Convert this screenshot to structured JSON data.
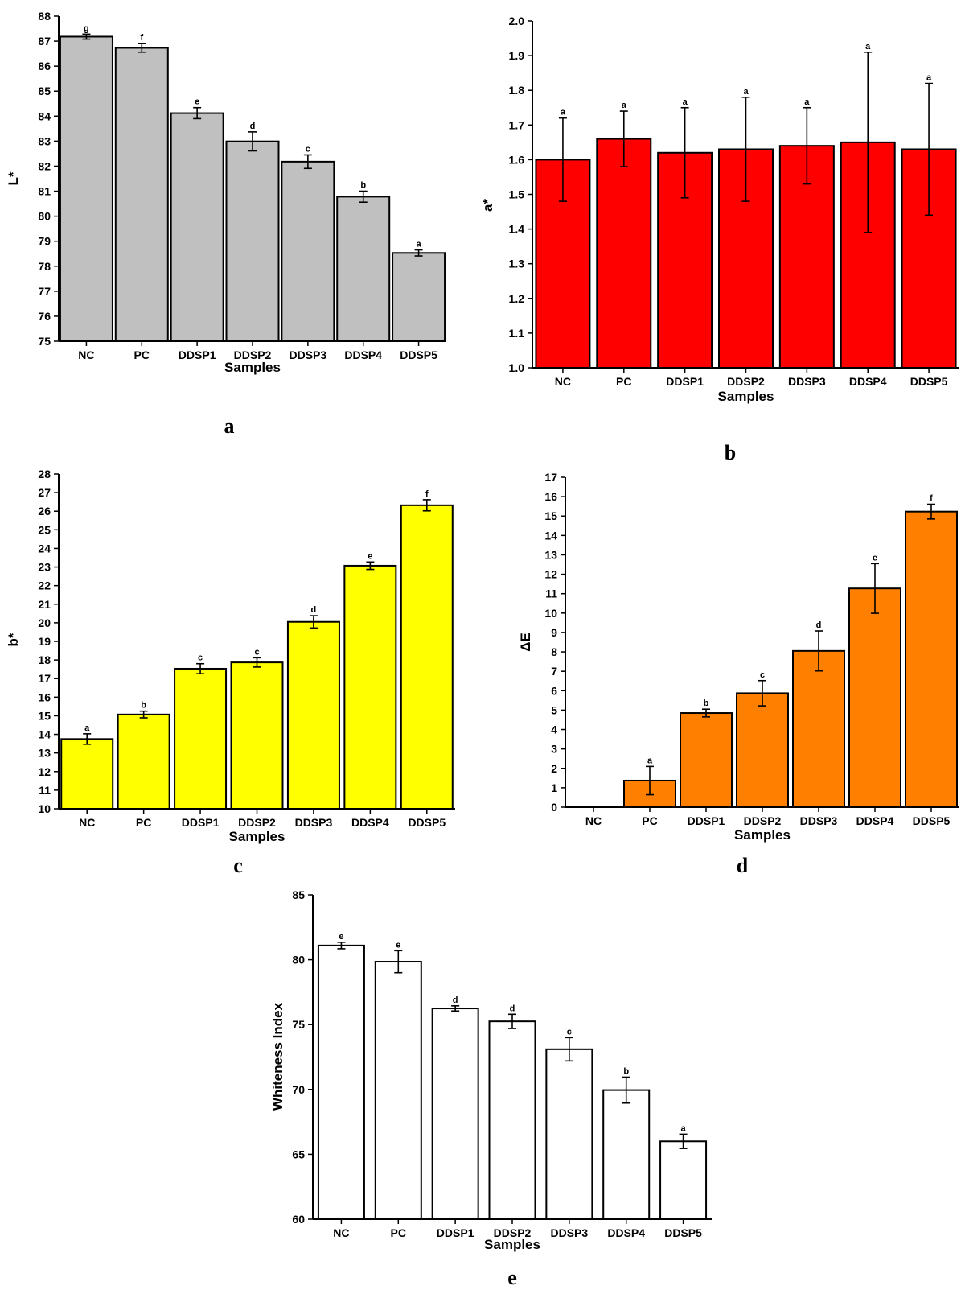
{
  "chart_data": [
    {
      "panel_label": "a",
      "type": "bar",
      "xlabel": "Samples",
      "ylabel": "L*",
      "ylim": [
        75,
        88
      ],
      "yticks": [
        "75",
        "76",
        "77",
        "78",
        "79",
        "80",
        "81",
        "82",
        "83",
        "84",
        "85",
        "86",
        "87",
        "88"
      ],
      "categories": [
        "NC",
        "PC",
        "DDSP1",
        "DDSP2",
        "DDSP3",
        "DDSP4",
        "DDSP5"
      ],
      "values": [
        87.18,
        86.73,
        84.12,
        82.99,
        82.18,
        80.78,
        78.53
      ],
      "errors": [
        0.1,
        0.17,
        0.22,
        0.38,
        0.27,
        0.22,
        0.12
      ],
      "significance": [
        "g",
        "f",
        "e",
        "d",
        "c",
        "b",
        "a"
      ],
      "bar_color": "#c0c0c0"
    },
    {
      "panel_label": "b",
      "type": "bar",
      "xlabel": "Samples",
      "ylabel": "a*",
      "ylim": [
        1.0,
        2.0
      ],
      "yticks": [
        "1.0",
        "1.1",
        "1.2",
        "1.3",
        "1.4",
        "1.5",
        "1.6",
        "1.7",
        "1.8",
        "1.9",
        "2.0"
      ],
      "categories": [
        "NC",
        "PC",
        "DDSP1",
        "DDSP2",
        "DDSP3",
        "DDSP4",
        "DDSP5"
      ],
      "values": [
        1.6,
        1.66,
        1.62,
        1.63,
        1.64,
        1.65,
        1.63
      ],
      "errors": [
        0.12,
        0.08,
        0.13,
        0.15,
        0.11,
        0.26,
        0.19
      ],
      "significance": [
        "a",
        "a",
        "a",
        "a",
        "a",
        "a",
        "a"
      ],
      "bar_color": "#ff0000"
    },
    {
      "panel_label": "c",
      "type": "bar",
      "xlabel": "Samples",
      "ylabel": "b*",
      "ylim": [
        10,
        28
      ],
      "yticks": [
        "10",
        "11",
        "12",
        "13",
        "14",
        "15",
        "16",
        "17",
        "18",
        "19",
        "20",
        "21",
        "22",
        "23",
        "24",
        "25",
        "26",
        "27",
        "28"
      ],
      "categories": [
        "NC",
        "PC",
        "DDSP1",
        "DDSP2",
        "DDSP3",
        "DDSP4",
        "DDSP5"
      ],
      "values": [
        13.75,
        15.07,
        17.53,
        17.87,
        20.05,
        23.07,
        26.32
      ],
      "errors": [
        0.28,
        0.18,
        0.27,
        0.25,
        0.33,
        0.2,
        0.3
      ],
      "significance": [
        "a",
        "b",
        "c",
        "c",
        "d",
        "e",
        "f"
      ],
      "bar_color": "#ffff00"
    },
    {
      "panel_label": "d",
      "type": "bar",
      "xlabel": "Samples",
      "ylabel": "ΔE",
      "ylim": [
        0,
        17
      ],
      "yticks": [
        "0",
        "1",
        "2",
        "3",
        "4",
        "5",
        "6",
        "7",
        "8",
        "9",
        "10",
        "11",
        "12",
        "13",
        "14",
        "15",
        "16",
        "17"
      ],
      "categories": [
        "NC",
        "PC",
        "DDSP1",
        "DDSP2",
        "DDSP3",
        "DDSP4",
        "DDSP5"
      ],
      "values": [
        0,
        1.37,
        4.85,
        5.87,
        8.05,
        11.27,
        15.23
      ],
      "errors": [
        0,
        0.73,
        0.2,
        0.65,
        1.03,
        1.28,
        0.38
      ],
      "significance": [
        "",
        "a",
        "b",
        "c",
        "d",
        "e",
        "f"
      ],
      "bar_color": "#ff8000"
    },
    {
      "panel_label": "e",
      "type": "bar",
      "xlabel": "Samples",
      "ylabel": "Whiteness Index",
      "ylim": [
        60,
        85
      ],
      "yticks": [
        "60",
        "65",
        "70",
        "75",
        "80",
        "85"
      ],
      "categories": [
        "NC",
        "PC",
        "DDSP1",
        "DDSP2",
        "DDSP3",
        "DDSP4",
        "DDSP5"
      ],
      "values": [
        81.1,
        79.85,
        76.25,
        75.25,
        73.1,
        69.95,
        66.0
      ],
      "errors": [
        0.25,
        0.85,
        0.2,
        0.55,
        0.9,
        1.0,
        0.55
      ],
      "significance": [
        "e",
        "e",
        "d",
        "d",
        "c",
        "b",
        "a"
      ],
      "bar_color": "#ffffff"
    }
  ]
}
